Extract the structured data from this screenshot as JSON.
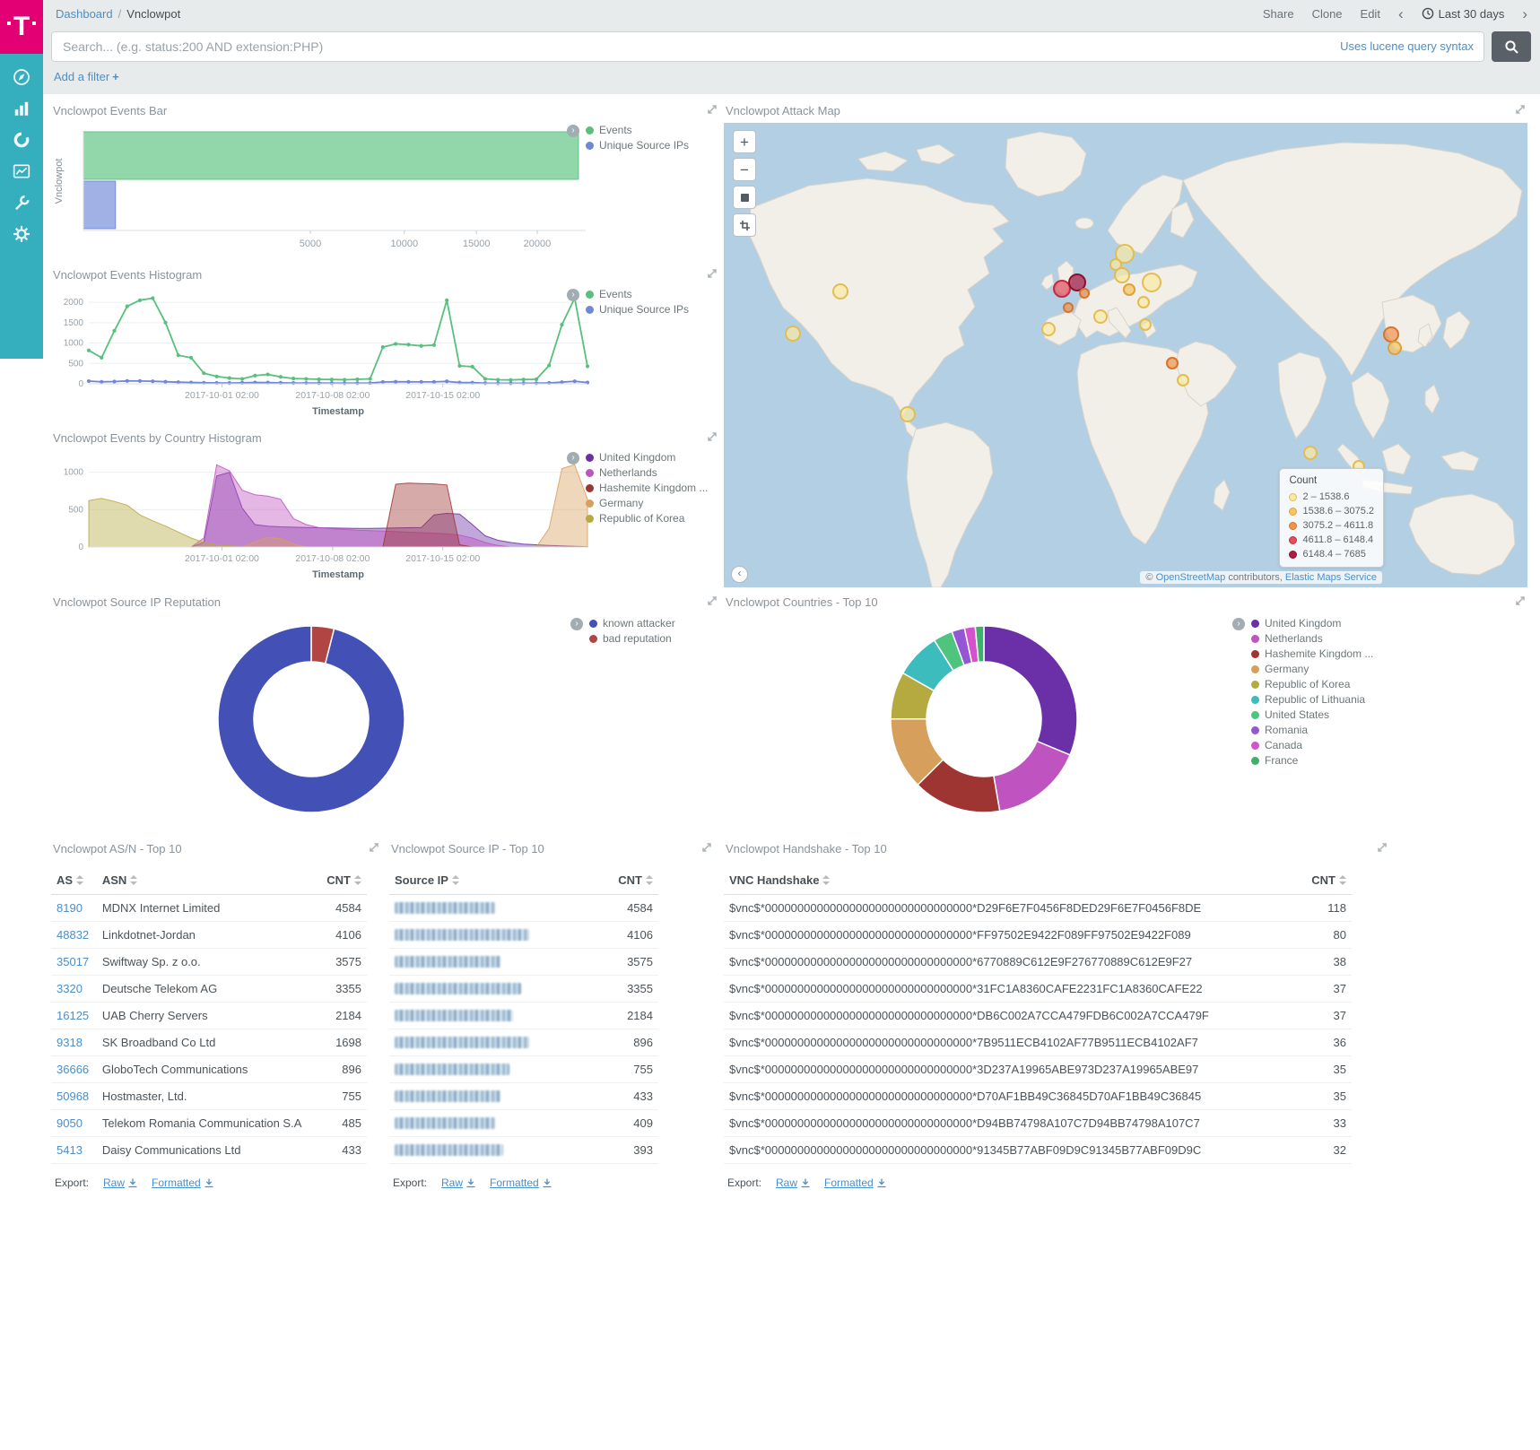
{
  "brand": {
    "logo_letter": "T"
  },
  "header": {
    "breadcrumb": {
      "root": "Dashboard",
      "separator": "/",
      "current": "Vnclowpot"
    },
    "actions": {
      "share": "Share",
      "clone": "Clone",
      "edit": "Edit"
    },
    "time_range": "Last 30 days"
  },
  "search": {
    "placeholder": "Search... (e.g. status:200 AND extension:PHP)",
    "syntax_hint": "Uses lucene query syntax"
  },
  "filter_bar": {
    "add_filter": "Add a filter",
    "plus": "+"
  },
  "export_labels": {
    "label": "Export:",
    "raw": "Raw",
    "formatted": "Formatted"
  },
  "panels": {
    "events_bar": {
      "title": "Vnclowpot Events Bar"
    },
    "attack_map": {
      "title": "Vnclowpot Attack Map",
      "controls": {
        "zoom_in": "+",
        "zoom_out": "−"
      },
      "attribution": {
        "copyright": "©",
        "osm_link": "OpenStreetMap",
        "middle": "contributors,",
        "ems_link": "Elastic Maps Service"
      }
    },
    "events_histogram": {
      "title": "Vnclowpot Events Histogram"
    },
    "country_histogram": {
      "title": "Vnclowpot Events by Country Histogram"
    },
    "reputation": {
      "title": "Vnclowpot Source IP Reputation"
    },
    "countries": {
      "title": "Vnclowpot Countries - Top 10"
    },
    "asn_table": {
      "title": "Vnclowpot AS/N - Top 10",
      "columns": [
        "AS",
        "ASN",
        "CNT"
      ],
      "rows": [
        {
          "as": "8190",
          "asn": "MDNX Internet Limited",
          "cnt": "4584"
        },
        {
          "as": "48832",
          "asn": "Linkdotnet-Jordan",
          "cnt": "4106"
        },
        {
          "as": "35017",
          "asn": "Swiftway Sp. z o.o.",
          "cnt": "3575"
        },
        {
          "as": "3320",
          "asn": "Deutsche Telekom AG",
          "cnt": "3355"
        },
        {
          "as": "16125",
          "asn": "UAB Cherry Servers",
          "cnt": "2184"
        },
        {
          "as": "9318",
          "asn": "SK Broadband Co Ltd",
          "cnt": "1698"
        },
        {
          "as": "36666",
          "asn": "GloboTech Communications",
          "cnt": "896"
        },
        {
          "as": "50968",
          "asn": "Hostmaster, Ltd.",
          "cnt": "755"
        },
        {
          "as": "9050",
          "asn": "Telekom Romania Communication S.A",
          "cnt": "485"
        },
        {
          "as": "5413",
          "asn": "Daisy Communications Ltd",
          "cnt": "433"
        }
      ]
    },
    "srcip_table": {
      "title": "Vnclowpot Source IP - Top 10",
      "columns": [
        "Source IP",
        "CNT"
      ],
      "rows": [
        {
          "ip_redacted": true,
          "blur_width": 112,
          "cnt": "4584"
        },
        {
          "ip_redacted": true,
          "blur_width": 150,
          "cnt": "4106"
        },
        {
          "ip_redacted": true,
          "blur_width": 118,
          "cnt": "3575"
        },
        {
          "ip_redacted": true,
          "blur_width": 141,
          "cnt": "3355"
        },
        {
          "ip_redacted": true,
          "blur_width": 132,
          "cnt": "2184"
        },
        {
          "ip_redacted": true,
          "blur_width": 150,
          "cnt": "896"
        },
        {
          "ip_redacted": true,
          "blur_width": 128,
          "cnt": "755"
        },
        {
          "ip_redacted": true,
          "blur_width": 118,
          "cnt": "433"
        },
        {
          "ip_redacted": true,
          "blur_width": 112,
          "cnt": "409"
        },
        {
          "ip_redacted": true,
          "blur_width": 121,
          "cnt": "393"
        }
      ]
    },
    "handshake_table": {
      "title": "Vnclowpot Handshake - Top 10",
      "columns": [
        "VNC Handshake",
        "CNT"
      ],
      "rows": [
        {
          "handshake": "$vnc$*00000000000000000000000000000000*D29F6E7F0456F8DED29F6E7F0456F8DE",
          "cnt": "118"
        },
        {
          "handshake": "$vnc$*00000000000000000000000000000000*FF97502E9422F089FF97502E9422F089",
          "cnt": "80"
        },
        {
          "handshake": "$vnc$*00000000000000000000000000000000*6770889C612E9F276770889C612E9F27",
          "cnt": "38"
        },
        {
          "handshake": "$vnc$*00000000000000000000000000000000*31FC1A8360CAFE2231FC1A8360CAFE22",
          "cnt": "37"
        },
        {
          "handshake": "$vnc$*00000000000000000000000000000000*DB6C002A7CCA479FDB6C002A7CCA479F",
          "cnt": "37"
        },
        {
          "handshake": "$vnc$*00000000000000000000000000000000*7B9511ECB4102AF77B9511ECB4102AF7",
          "cnt": "36"
        },
        {
          "handshake": "$vnc$*00000000000000000000000000000000*3D237A19965ABE973D237A19965ABE97",
          "cnt": "35"
        },
        {
          "handshake": "$vnc$*00000000000000000000000000000000*D70AF1BB49C36845D70AF1BB49C36845",
          "cnt": "35"
        },
        {
          "handshake": "$vnc$*00000000000000000000000000000000*D94BB74798A107C7D94BB74798A107C7",
          "cnt": "33"
        },
        {
          "handshake": "$vnc$*00000000000000000000000000000000*91345B77ABF09D9C91345B77ABF09D9C",
          "cnt": "32"
        }
      ]
    }
  },
  "legends": {
    "events": [
      {
        "label": "Events",
        "color": "#57c17b"
      },
      {
        "label": "Unique Source IPs",
        "color": "#6f87d8"
      }
    ],
    "countries_histogram": [
      {
        "label": "United Kingdom",
        "color": "#6b2fa8"
      },
      {
        "label": "Netherlands",
        "color": "#bf53bf"
      },
      {
        "label": "Hashemite Kingdom ...",
        "color": "#9e3533"
      },
      {
        "label": "Germany",
        "color": "#d6a05c"
      },
      {
        "label": "Republic of Korea",
        "color": "#b5aa40"
      }
    ],
    "reputation": [
      {
        "label": "known attacker",
        "color": "#4350b5"
      },
      {
        "label": "bad reputation",
        "color": "#b04543"
      }
    ],
    "countries_top10": [
      {
        "label": "United Kingdom",
        "color": "#6b2fa8"
      },
      {
        "label": "Netherlands",
        "color": "#bf53bf"
      },
      {
        "label": "Hashemite Kingdom ...",
        "color": "#9e3533"
      },
      {
        "label": "Germany",
        "color": "#d6a05c"
      },
      {
        "label": "Republic of Korea",
        "color": "#b5aa40"
      },
      {
        "label": "Republic of Lithuania",
        "color": "#3cbcbc"
      },
      {
        "label": "United States",
        "color": "#4ec47e"
      },
      {
        "label": "Romania",
        "color": "#9456d4"
      },
      {
        "label": "Canada",
        "color": "#d453cc"
      },
      {
        "label": "France",
        "color": "#3faf6c"
      }
    ]
  },
  "chart_data": [
    {
      "id": "events-bar",
      "type": "bar",
      "orientation": "horizontal",
      "scale": "sqrt",
      "category": "Vnclowpot",
      "xticks": [
        5000,
        10000,
        15000,
        20000
      ],
      "xmax": 24500,
      "series": [
        {
          "name": "Events",
          "color": "#57c17b",
          "value": 23800
        },
        {
          "name": "Unique Source IPs",
          "color": "#6f87d8",
          "value": 100
        }
      ]
    },
    {
      "id": "events-histogram",
      "type": "line",
      "xlabel": "Timestamp",
      "ymax": 2200,
      "yticks": [
        0,
        500,
        1000,
        1500,
        2000
      ],
      "xticks": [
        {
          "pos": 0.267,
          "label": "2017-10-01 02:00"
        },
        {
          "pos": 0.489,
          "label": "2017-10-08 02:00"
        },
        {
          "pos": 0.71,
          "label": "2017-10-15 02:00"
        }
      ],
      "series": [
        {
          "name": "Events",
          "color": "#57c17b",
          "values": [
            820,
            640,
            1300,
            1900,
            2050,
            2100,
            1500,
            700,
            640,
            260,
            180,
            140,
            120,
            200,
            230,
            170,
            130,
            120,
            110,
            105,
            100,
            110,
            120,
            900,
            980,
            960,
            930,
            950,
            2050,
            440,
            420,
            120,
            100,
            95,
            105,
            110,
            450,
            1450,
            2100,
            430
          ]
        },
        {
          "name": "Unique Source IPs",
          "color": "#6f87d8",
          "values": [
            65,
            48,
            55,
            70,
            68,
            62,
            50,
            40,
            32,
            26,
            22,
            20,
            24,
            32,
            30,
            24,
            20,
            18,
            17,
            16,
            15,
            16,
            18,
            45,
            50,
            48,
            46,
            47,
            60,
            30,
            28,
            16,
            14,
            13,
            14,
            15,
            22,
            40,
            62,
            30
          ]
        }
      ]
    },
    {
      "id": "country-histogram",
      "type": "area",
      "xlabel": "Timestamp",
      "ymax": 1200,
      "yticks": [
        0,
        500,
        1000
      ],
      "xticks": [
        {
          "pos": 0.267,
          "label": "2017-10-01 02:00"
        },
        {
          "pos": 0.489,
          "label": "2017-10-08 02:00"
        },
        {
          "pos": 0.71,
          "label": "2017-10-15 02:00"
        }
      ],
      "series": [
        {
          "name": "United Kingdom",
          "color": "#6b2fa8",
          "values": [
            0,
            0,
            0,
            0,
            0,
            0,
            0,
            0,
            0,
            60,
            950,
            1000,
            520,
            300,
            280,
            270,
            265,
            260,
            258,
            255,
            252,
            250,
            250,
            252,
            255,
            258,
            260,
            430,
            450,
            440,
            300,
            150,
            90,
            60,
            40,
            30,
            20,
            15,
            10,
            5
          ]
        },
        {
          "name": "Netherlands",
          "color": "#bf53bf",
          "values": [
            0,
            0,
            0,
            0,
            0,
            0,
            0,
            0,
            0,
            120,
            1100,
            1020,
            760,
            700,
            680,
            640,
            380,
            300,
            260,
            245,
            235,
            225,
            218,
            212,
            205,
            198,
            192,
            185,
            175,
            160,
            120,
            60,
            20,
            0,
            0,
            0,
            0,
            0,
            0,
            0
          ]
        },
        {
          "name": "Hashemite Kingdom ...",
          "color": "#9e3533",
          "values": [
            0,
            0,
            0,
            0,
            0,
            0,
            0,
            0,
            0,
            0,
            0,
            0,
            0,
            0,
            0,
            0,
            0,
            0,
            0,
            0,
            0,
            0,
            0,
            0,
            840,
            855,
            850,
            845,
            830,
            30,
            0,
            0,
            0,
            0,
            0,
            0,
            0,
            0,
            0,
            0
          ]
        },
        {
          "name": "Germany",
          "color": "#d6a05c",
          "values": [
            0,
            0,
            0,
            0,
            0,
            0,
            0,
            0,
            0,
            0,
            0,
            0,
            0,
            70,
            130,
            110,
            40,
            0,
            0,
            0,
            0,
            0,
            0,
            0,
            0,
            0,
            0,
            0,
            0,
            0,
            0,
            0,
            0,
            0,
            0,
            0,
            250,
            1050,
            1100,
            640
          ]
        },
        {
          "name": "Republic of Korea",
          "color": "#b5aa40",
          "values": [
            620,
            650,
            610,
            560,
            430,
            350,
            280,
            200,
            120,
            60,
            30,
            15,
            5,
            0,
            0,
            0,
            0,
            0,
            0,
            0,
            0,
            0,
            0,
            0,
            0,
            0,
            0,
            0,
            0,
            0,
            0,
            0,
            0,
            0,
            0,
            0,
            0,
            0,
            0,
            0
          ]
        }
      ]
    },
    {
      "id": "reputation-donut",
      "type": "pie",
      "inner": 0.62,
      "slices": [
        {
          "label": "bad reputation",
          "color": "#b04543",
          "value": 950
        },
        {
          "label": "known attacker",
          "color": "#4350b5",
          "value": 23050
        }
      ]
    },
    {
      "id": "countries-donut",
      "type": "pie",
      "inner": 0.62,
      "slices": [
        {
          "label": "United Kingdom",
          "color": "#6b2fa8",
          "value": 8400
        },
        {
          "label": "Netherlands",
          "color": "#bf53bf",
          "value": 4300
        },
        {
          "label": "Hashemite Kingdom ...",
          "color": "#9e3533",
          "value": 4106
        },
        {
          "label": "Germany",
          "color": "#d6a05c",
          "value": 3355
        },
        {
          "label": "Republic of Korea",
          "color": "#b5aa40",
          "value": 2200
        },
        {
          "label": "Republic of Lithuania",
          "color": "#3cbcbc",
          "value": 2100
        },
        {
          "label": "United States",
          "color": "#4ec47e",
          "value": 900
        },
        {
          "label": "Romania",
          "color": "#9456d4",
          "value": 600
        },
        {
          "label": "Canada",
          "color": "#d453cc",
          "value": 500
        },
        {
          "label": "France",
          "color": "#3faf6c",
          "value": 400
        }
      ]
    },
    {
      "id": "attack-map",
      "type": "map",
      "legend_title": "Count",
      "buckets": [
        {
          "range": "2 – 1538.6",
          "fill": "#f9e9a2",
          "border": "#e3bc54"
        },
        {
          "range": "1538.6 – 3075.2",
          "fill": "#f6c55e",
          "border": "#dda23a"
        },
        {
          "range": "3075.2 – 4611.8",
          "fill": "#f0934e",
          "border": "#d9732c"
        },
        {
          "range": "4611.8 – 6148.4",
          "fill": "#e44f5b",
          "border": "#c42b42"
        },
        {
          "range": "6148.4 – 7685",
          "fill": "#b01d40",
          "border": "#8e1030"
        }
      ],
      "markers": [
        {
          "x": 14.5,
          "y": 36.3,
          "r": 9,
          "b": 0
        },
        {
          "x": 8.6,
          "y": 45.4,
          "r": 9,
          "b": 0
        },
        {
          "x": 22.9,
          "y": 62.7,
          "r": 9,
          "b": 0
        },
        {
          "x": 42.1,
          "y": 35.7,
          "r": 10,
          "b": 3
        },
        {
          "x": 44.0,
          "y": 34.4,
          "r": 10,
          "b": 4
        },
        {
          "x": 42.9,
          "y": 39.8,
          "r": 6,
          "b": 2
        },
        {
          "x": 44.9,
          "y": 36.7,
          "r": 6,
          "b": 2
        },
        {
          "x": 49.9,
          "y": 28.2,
          "r": 11,
          "b": 0
        },
        {
          "x": 48.8,
          "y": 30.5,
          "r": 7,
          "b": 0
        },
        {
          "x": 49.6,
          "y": 32.8,
          "r": 9,
          "b": 0
        },
        {
          "x": 50.4,
          "y": 35.9,
          "r": 7,
          "b": 1
        },
        {
          "x": 53.2,
          "y": 34.4,
          "r": 11,
          "b": 0
        },
        {
          "x": 40.4,
          "y": 44.4,
          "r": 8,
          "b": 0
        },
        {
          "x": 46.9,
          "y": 41.7,
          "r": 8,
          "b": 0
        },
        {
          "x": 52.2,
          "y": 38.6,
          "r": 7,
          "b": 0
        },
        {
          "x": 52.5,
          "y": 43.4,
          "r": 7,
          "b": 0
        },
        {
          "x": 55.8,
          "y": 51.7,
          "r": 7,
          "b": 2
        },
        {
          "x": 57.1,
          "y": 55.4,
          "r": 7,
          "b": 0
        },
        {
          "x": 83.0,
          "y": 45.5,
          "r": 9,
          "b": 2
        },
        {
          "x": 83.5,
          "y": 48.5,
          "r": 8,
          "b": 1
        },
        {
          "x": 73.0,
          "y": 71.0,
          "r": 8,
          "b": 0
        },
        {
          "x": 79.0,
          "y": 74.0,
          "r": 7,
          "b": 0
        }
      ]
    }
  ]
}
